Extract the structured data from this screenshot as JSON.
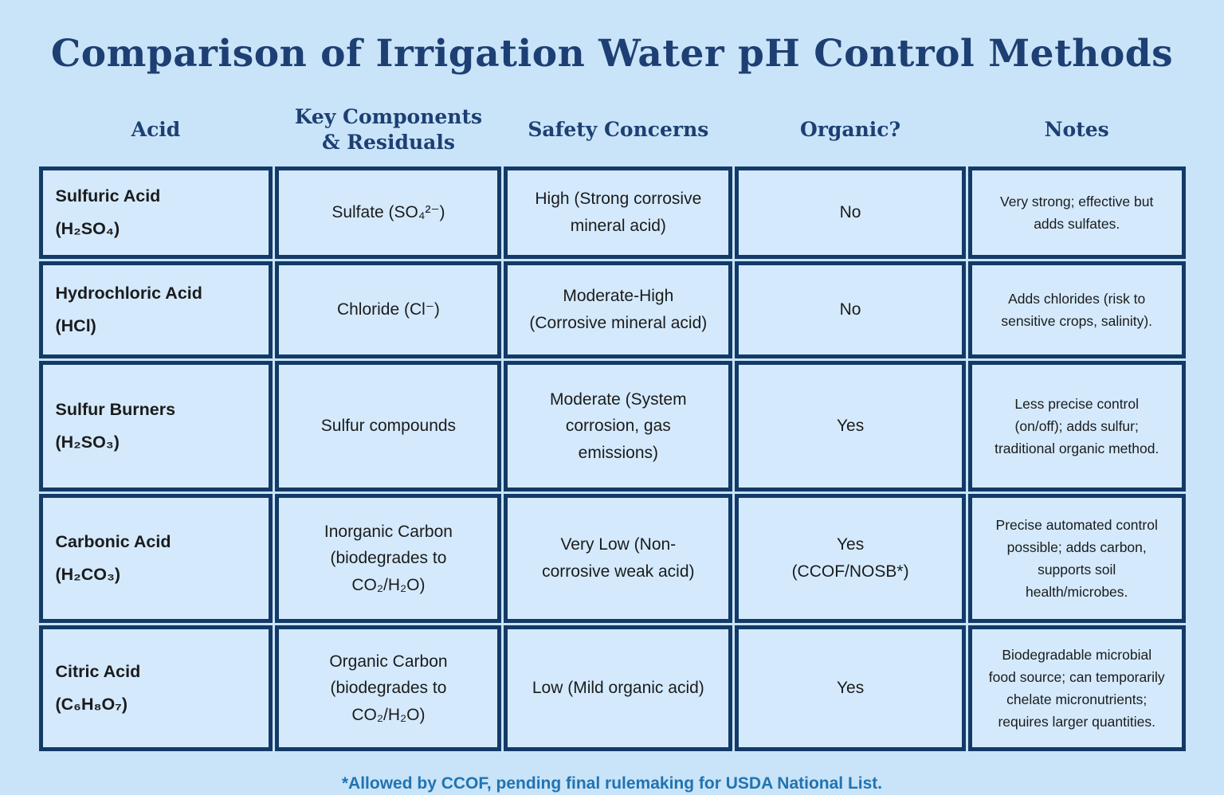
{
  "page": {
    "title": "Comparison of Irrigation Water pH Control Methods",
    "footnote": "*Allowed by CCOF, pending final rulemaking for USDA National List.",
    "colors": {
      "background": "#c9e4f8",
      "cell_background": "#d4eafc",
      "border": "#133a67",
      "heading_text": "#1d3f73",
      "body_text": "#1b1b1d",
      "footnote_text": "#2173b2"
    }
  },
  "table": {
    "columns": [
      "Acid",
      "Key Components\n& Residuals",
      "Safety Concerns",
      "Organic?",
      "Notes"
    ],
    "rows": [
      {
        "acid": "Sulfuric Acid\n(H₂SO₄)",
        "components": "Sulfate (SO₄²⁻)",
        "safety": "High (Strong corrosive\nmineral acid)",
        "organic": "No",
        "notes": "Very strong; effective but\nadds sulfates."
      },
      {
        "acid": "Hydrochloric Acid\n(HCl)",
        "components": "Chloride (Cl⁻)",
        "safety": "Moderate-High\n(Corrosive mineral acid)",
        "organic": "No",
        "notes": "Adds chlorides (risk to\nsensitive crops, salinity)."
      },
      {
        "acid": "Sulfur Burners\n(H₂SO₃)",
        "components": "Sulfur compounds",
        "safety": "Moderate (System\ncorrosion, gas\nemissions)",
        "organic": "Yes",
        "notes": "Less precise control\n(on/off); adds sulfur;\ntraditional organic method."
      },
      {
        "acid": "Carbonic Acid\n(H₂CO₃)",
        "components": "Inorganic Carbon\n(biodegrades to\nCO₂/H₂O)",
        "safety": "Very Low (Non-\ncorrosive weak acid)",
        "organic": "Yes\n(CCOF/NOSB*)",
        "notes": "Precise automated control\npossible; adds carbon,\nsupports soil\nhealth/microbes."
      },
      {
        "acid": "Citric Acid\n(C₆H₈O₇)",
        "components": "Organic Carbon\n(biodegrades to\nCO₂/H₂O)",
        "safety": "Low (Mild organic acid)",
        "organic": "Yes",
        "notes": "Biodegradable microbial\nfood source; can temporarily\nchelate micronutrients;\nrequires larger quantities."
      }
    ]
  },
  "chart_data": {
    "type": "table",
    "title": "Comparison of Irrigation Water pH Control Methods",
    "columns": [
      "Acid",
      "Key Components & Residuals",
      "Safety Concerns",
      "Organic?",
      "Notes"
    ],
    "rows": [
      [
        "Sulfuric Acid (H₂SO₄)",
        "Sulfate (SO₄²⁻)",
        "High (Strong corrosive mineral acid)",
        "No",
        "Very strong; effective but adds sulfates."
      ],
      [
        "Hydrochloric Acid (HCl)",
        "Chloride (Cl⁻)",
        "Moderate-High (Corrosive mineral acid)",
        "No",
        "Adds chlorides (risk to sensitive crops, salinity)."
      ],
      [
        "Sulfur Burners (H₂SO₃)",
        "Sulfur compounds",
        "Moderate (System corrosion, gas emissions)",
        "Yes",
        "Less precise control (on/off); adds sulfur; traditional organic method."
      ],
      [
        "Carbonic Acid (H₂CO₃)",
        "Inorganic Carbon (biodegrades to CO₂/H₂O)",
        "Very Low (Non-corrosive weak acid)",
        "Yes (CCOF/NOSB*)",
        "Precise automated control possible; adds carbon, supports soil health/microbes."
      ],
      [
        "Citric Acid (C₆H₈O₇)",
        "Organic Carbon (biodegrades to CO₂/H₂O)",
        "Low (Mild organic acid)",
        "Yes",
        "Biodegradable microbial food source; can temporarily chelate micronutrients; requires larger quantities."
      ]
    ],
    "footnote": "*Allowed by CCOF, pending final rulemaking for USDA National List."
  }
}
